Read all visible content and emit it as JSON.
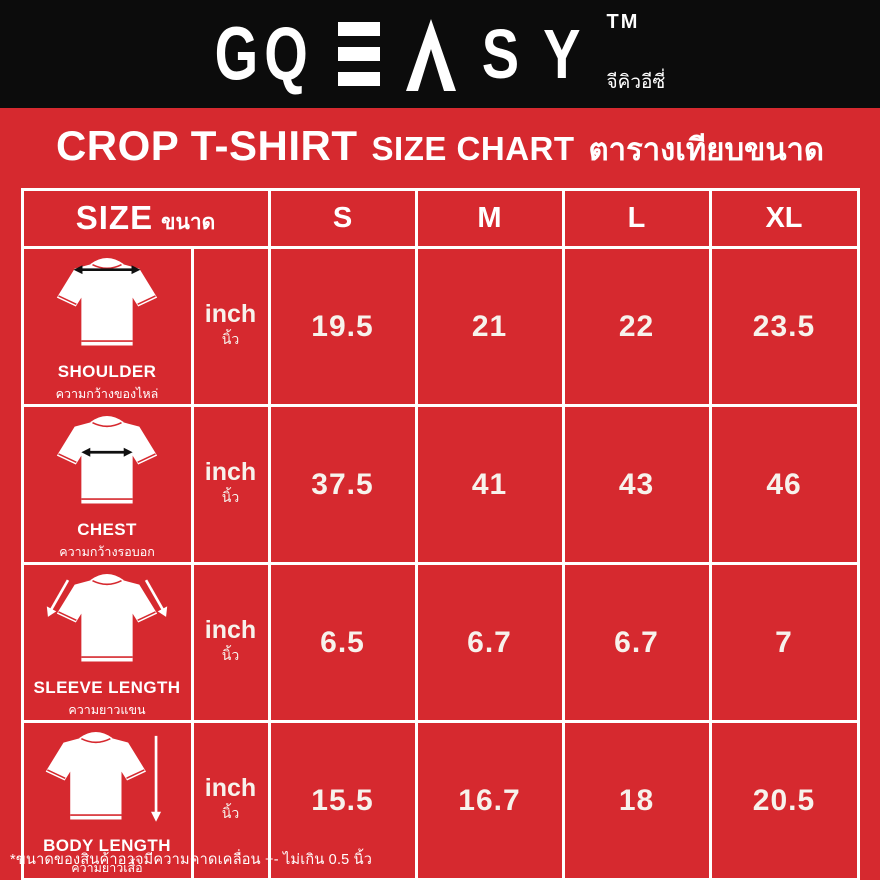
{
  "logo": {
    "gq": "GQ",
    "e_icon": "three-horizontal-bars",
    "a_icon": "caret-peak",
    "s": "S",
    "y": "Y",
    "tm": "TM",
    "thai": "จีคิวอีซี่"
  },
  "title": {
    "main": "CROP T-SHIRT",
    "sub": "SIZE CHART",
    "thai": "ตารางเทียบขนาด"
  },
  "colors": {
    "background_red": "#d6292f",
    "header_black": "#0c0c0c",
    "border_white": "#ffffff",
    "arrow_black": "#101010",
    "arrow_white": "#ffffff"
  },
  "table": {
    "size_label": "SIZE",
    "size_label_thai": "ขนาด",
    "unit_label": "inch",
    "unit_label_thai": "นิ้ว",
    "sizes": [
      "S",
      "M",
      "L",
      "XL"
    ],
    "rows": [
      {
        "label": "SHOULDER",
        "label_thai": "ความกว้างของไหล่",
        "icon": "tshirt-shoulder-arrow",
        "values": [
          "19.5",
          "21",
          "22",
          "23.5"
        ]
      },
      {
        "label": "CHEST",
        "label_thai": "ความกว้างรอบอก",
        "icon": "tshirt-chest-arrow",
        "values": [
          "37.5",
          "41",
          "43",
          "46"
        ]
      },
      {
        "label": "SLEEVE LENGTH",
        "label_thai": "ความยาวแขน",
        "icon": "tshirt-sleeve-arrow",
        "values": [
          "6.5",
          "6.7",
          "6.7",
          "7"
        ]
      },
      {
        "label": "BODY LENGTH",
        "label_thai": "ความยาวเสื้อ",
        "icon": "tshirt-body-arrow",
        "values": [
          "15.5",
          "16.7",
          "18",
          "20.5"
        ]
      }
    ]
  },
  "footnote": "*ขนาดของสินค้าอาจมีความคาดเคลื่อน +- ไม่เกิน 0.5 นิ้ว",
  "chart_data": {
    "type": "table",
    "title": "CROP T-SHIRT SIZE CHART ตารางเทียบขนาด",
    "unit": "inch (นิ้ว)",
    "categories": [
      "S",
      "M",
      "L",
      "XL"
    ],
    "series": [
      {
        "name": "SHOULDER (ความกว้างของไหล่)",
        "values": [
          19.5,
          21,
          22,
          23.5
        ]
      },
      {
        "name": "CHEST (ความกว้างรอบอก)",
        "values": [
          37.5,
          41,
          43,
          46
        ]
      },
      {
        "name": "SLEEVE LENGTH (ความยาวแขน)",
        "values": [
          6.5,
          6.7,
          6.7,
          7
        ]
      },
      {
        "name": "BODY LENGTH (ความยาวเสื้อ)",
        "values": [
          15.5,
          16.7,
          18,
          20.5
        ]
      }
    ],
    "note": "*ขนาดของสินค้าอาจมีความคาดเคลื่อน +- ไม่เกิน 0.5 นิ้ว"
  }
}
